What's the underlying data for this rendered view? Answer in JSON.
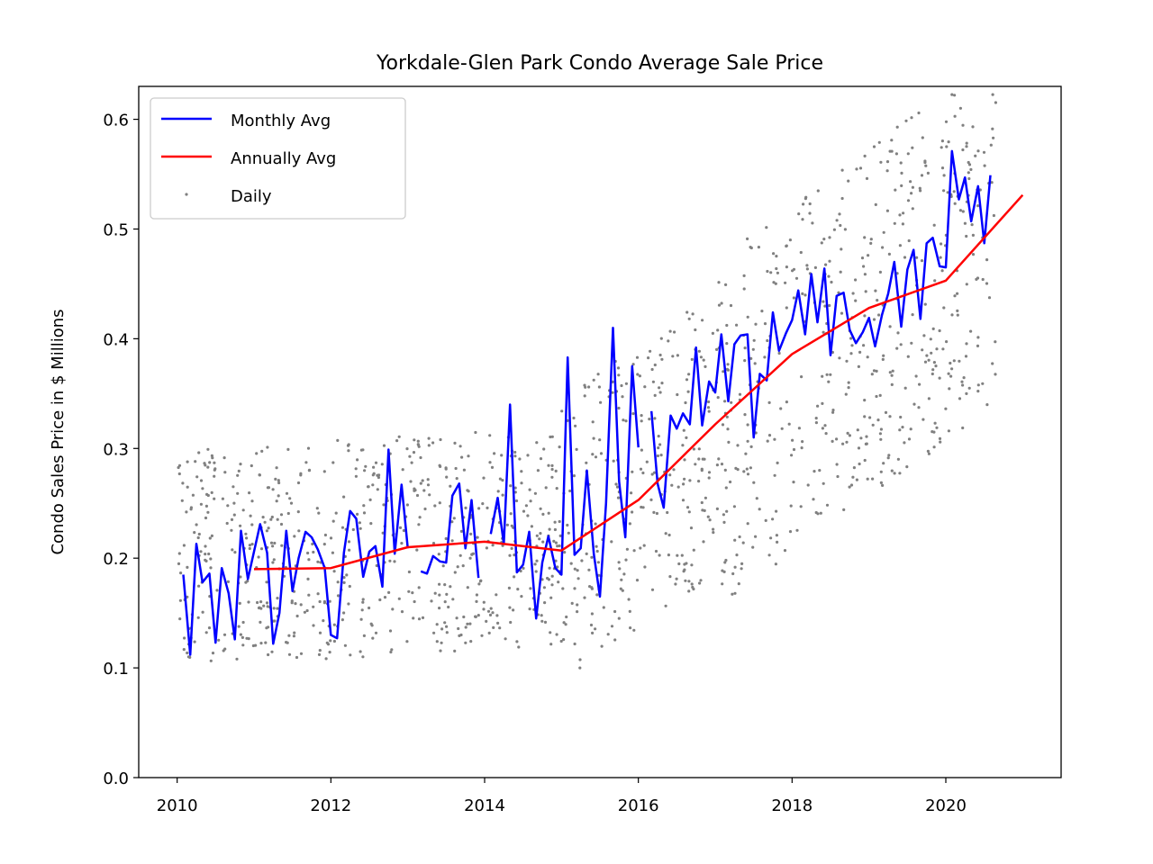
{
  "chart_data": {
    "type": "line",
    "title": "Yorkdale-Glen Park Condo Average Sale Price",
    "xlabel": "",
    "ylabel": "Condo Sales Price in $ Millions",
    "xlim": [
      2009.5,
      2021.5
    ],
    "ylim": [
      0.0,
      0.63
    ],
    "x_ticks": [
      2010,
      2012,
      2014,
      2016,
      2018,
      2020
    ],
    "y_ticks": [
      0.0,
      0.1,
      0.2,
      0.3,
      0.4,
      0.5,
      0.6
    ],
    "grid": false,
    "legend_position": "top-left",
    "series": [
      {
        "name": "Monthly Avg",
        "kind": "line",
        "color": "#0000ff",
        "segments": [
          [
            [
              2010.08,
              0.185
            ],
            [
              2010.17,
              0.112
            ],
            [
              2010.25,
              0.213
            ],
            [
              2010.33,
              0.178
            ],
            [
              2010.42,
              0.186
            ],
            [
              2010.5,
              0.123
            ],
            [
              2010.58,
              0.191
            ],
            [
              2010.67,
              0.168
            ],
            [
              2010.75,
              0.126
            ],
            [
              2010.83,
              0.225
            ],
            [
              2010.92,
              0.181
            ],
            [
              2011.0,
              0.206
            ],
            [
              2011.08,
              0.231
            ],
            [
              2011.17,
              0.205
            ],
            [
              2011.25,
              0.122
            ],
            [
              2011.33,
              0.15
            ],
            [
              2011.42,
              0.225
            ],
            [
              2011.5,
              0.17
            ],
            [
              2011.58,
              0.2
            ],
            [
              2011.67,
              0.224
            ],
            [
              2011.75,
              0.219
            ],
            [
              2011.83,
              0.208
            ],
            [
              2011.92,
              0.191
            ],
            [
              2012.0,
              0.13
            ],
            [
              2012.08,
              0.127
            ],
            [
              2012.17,
              0.205
            ],
            [
              2012.25,
              0.243
            ],
            [
              2012.33,
              0.236
            ],
            [
              2012.42,
              0.183
            ],
            [
              2012.5,
              0.206
            ],
            [
              2012.58,
              0.211
            ],
            [
              2012.67,
              0.174
            ],
            [
              2012.75,
              0.299
            ],
            [
              2012.83,
              0.204
            ],
            [
              2012.92,
              0.267
            ],
            [
              2013.0,
              0.209
            ]
          ],
          [
            [
              2013.17,
              0.188
            ],
            [
              2013.25,
              0.186
            ],
            [
              2013.33,
              0.202
            ],
            [
              2013.42,
              0.197
            ],
            [
              2013.5,
              0.196
            ],
            [
              2013.58,
              0.257
            ],
            [
              2013.67,
              0.268
            ],
            [
              2013.75,
              0.209
            ],
            [
              2013.83,
              0.253
            ],
            [
              2013.92,
              0.182
            ]
          ],
          [
            [
              2014.08,
              0.222
            ],
            [
              2014.17,
              0.255
            ],
            [
              2014.25,
              0.213
            ],
            [
              2014.33,
              0.34
            ],
            [
              2014.42,
              0.187
            ],
            [
              2014.5,
              0.194
            ],
            [
              2014.58,
              0.224
            ],
            [
              2014.67,
              0.145
            ],
            [
              2014.75,
              0.196
            ],
            [
              2014.83,
              0.22
            ],
            [
              2014.92,
              0.191
            ],
            [
              2015.0,
              0.185
            ],
            [
              2015.08,
              0.383
            ],
            [
              2015.17,
              0.203
            ],
            [
              2015.25,
              0.209
            ],
            [
              2015.33,
              0.28
            ],
            [
              2015.42,
              0.204
            ],
            [
              2015.5,
              0.165
            ],
            [
              2015.58,
              0.25
            ],
            [
              2015.67,
              0.41
            ],
            [
              2015.75,
              0.27
            ],
            [
              2015.83,
              0.219
            ],
            [
              2015.92,
              0.375
            ],
            [
              2016.0,
              0.301
            ]
          ],
          [
            [
              2016.17,
              0.334
            ],
            [
              2016.25,
              0.268
            ],
            [
              2016.33,
              0.246
            ],
            [
              2016.42,
              0.33
            ],
            [
              2016.5,
              0.318
            ],
            [
              2016.58,
              0.332
            ],
            [
              2016.67,
              0.322
            ],
            [
              2016.75,
              0.392
            ],
            [
              2016.83,
              0.321
            ],
            [
              2016.92,
              0.361
            ],
            [
              2017.0,
              0.351
            ],
            [
              2017.08,
              0.404
            ],
            [
              2017.17,
              0.343
            ],
            [
              2017.25,
              0.395
            ],
            [
              2017.33,
              0.403
            ],
            [
              2017.42,
              0.404
            ],
            [
              2017.5,
              0.31
            ],
            [
              2017.58,
              0.368
            ],
            [
              2017.67,
              0.362
            ],
            [
              2017.75,
              0.424
            ],
            [
              2017.83,
              0.389
            ],
            [
              2017.92,
              0.405
            ],
            [
              2018.0,
              0.417
            ],
            [
              2018.08,
              0.444
            ],
            [
              2018.17,
              0.404
            ],
            [
              2018.25,
              0.459
            ],
            [
              2018.33,
              0.415
            ],
            [
              2018.42,
              0.464
            ],
            [
              2018.5,
              0.385
            ],
            [
              2018.58,
              0.439
            ],
            [
              2018.67,
              0.442
            ],
            [
              2018.75,
              0.408
            ],
            [
              2018.83,
              0.396
            ],
            [
              2018.92,
              0.406
            ],
            [
              2019.0,
              0.419
            ],
            [
              2019.08,
              0.393
            ],
            [
              2019.17,
              0.422
            ],
            [
              2019.25,
              0.441
            ],
            [
              2019.33,
              0.47
            ],
            [
              2019.42,
              0.411
            ],
            [
              2019.5,
              0.463
            ],
            [
              2019.58,
              0.481
            ],
            [
              2019.67,
              0.418
            ],
            [
              2019.75,
              0.487
            ],
            [
              2019.83,
              0.492
            ],
            [
              2019.92,
              0.466
            ],
            [
              2020.0,
              0.465
            ],
            [
              2020.08,
              0.571
            ],
            [
              2020.17,
              0.527
            ],
            [
              2020.25,
              0.547
            ],
            [
              2020.33,
              0.507
            ],
            [
              2020.42,
              0.539
            ],
            [
              2020.5,
              0.487
            ],
            [
              2020.58,
              0.549
            ]
          ]
        ]
      },
      {
        "name": "Annually Avg",
        "kind": "line",
        "color": "#ff0000",
        "x": [
          2011,
          2012,
          2013,
          2014,
          2015,
          2016,
          2017,
          2018,
          2019,
          2020,
          2021
        ],
        "y": [
          0.19,
          0.191,
          0.21,
          0.215,
          0.207,
          0.253,
          0.322,
          0.386,
          0.428,
          0.453,
          0.531
        ]
      },
      {
        "name": "Daily",
        "kind": "scatter",
        "color": "#808080",
        "description": "about 1400 scattered daily sales points spread between 0.10 and 0.62"
      }
    ]
  }
}
